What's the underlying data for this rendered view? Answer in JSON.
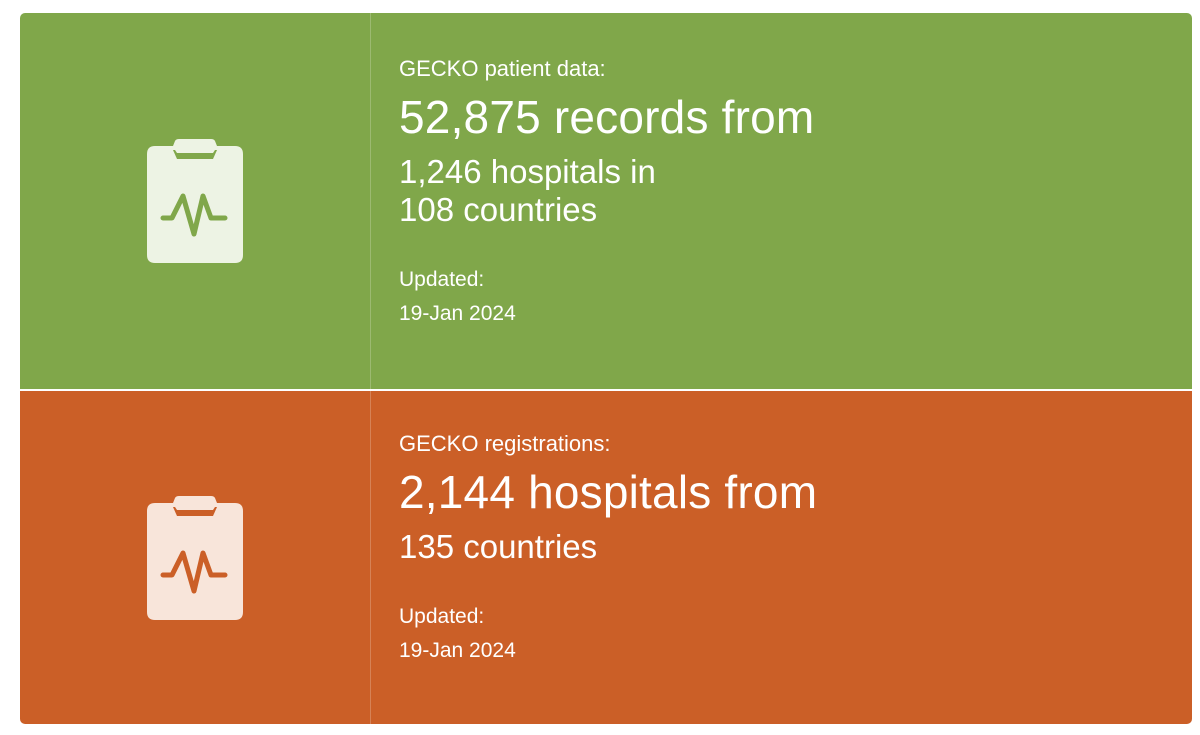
{
  "colors": {
    "patient_bg": "#80a74a",
    "registrations_bg": "#cb5f27",
    "patient_icon_fill": "#edf3e4",
    "registrations_icon_fill": "#f8e5da"
  },
  "patient": {
    "icon": "clipboard-pulse-icon",
    "label": "GECKO patient data:",
    "headline": "52,875 records from",
    "sub_line1": "1,246 hospitals in",
    "sub_line2": "108 countries",
    "updated_label": "Updated:",
    "updated_date": "19-Jan 2024"
  },
  "registrations": {
    "icon": "clipboard-pulse-icon",
    "label": "GECKO registrations:",
    "headline": "2,144 hospitals from",
    "sub_line1": "135 countries",
    "updated_label": "Updated:",
    "updated_date": "19-Jan 2024"
  }
}
